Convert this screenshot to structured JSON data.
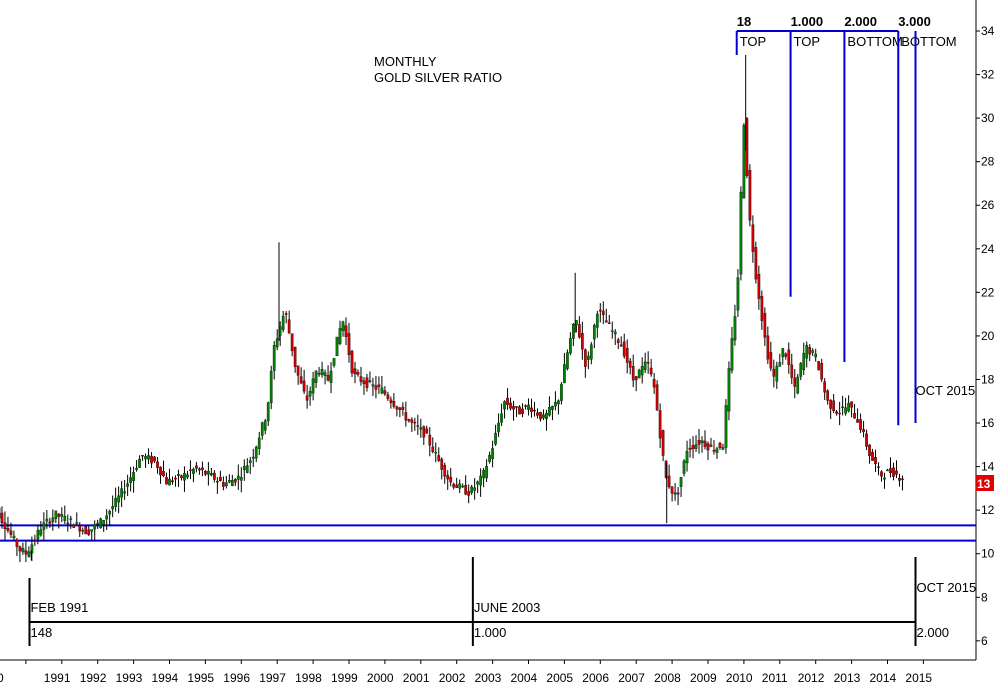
{
  "chart_data": {
    "type": "candlestick",
    "title": "MONTHLY",
    "subtitle": "GOLD SILVER RATIO",
    "ylim": [
      6,
      34
    ],
    "y_ticks": [
      6,
      8,
      10,
      12,
      14,
      16,
      18,
      20,
      22,
      24,
      26,
      28,
      30,
      32,
      34
    ],
    "x_tick_labels": [
      "0",
      "1991",
      "1992",
      "1993",
      "1994",
      "1995",
      "1996",
      "1997",
      "1998",
      "1999",
      "2000",
      "2001",
      "2002",
      "2003",
      "2004",
      "2005",
      "2006",
      "2007",
      "2008",
      "2009",
      "2010",
      "2011",
      "2012",
      "2013",
      "2014",
      "2015"
    ],
    "last_price": "13",
    "colors": {
      "up": "#008000",
      "down": "#cc0000",
      "lines": "#0000cc",
      "cycle": "#000000",
      "tag": "#e00000"
    },
    "horizontal_levels": [
      11.3,
      10.6
    ],
    "cycle_markers": {
      "labels": [
        {
          "id": "feb1991",
          "text": "FEB 1991",
          "sub": "148",
          "year": 1991.1,
          "y": 10
        },
        {
          "id": "june2003",
          "text": "JUNE 2003",
          "sub": "1.000",
          "year": 2003.45,
          "y": 10
        },
        {
          "id": "oct2015",
          "text": "OCT 2015",
          "sub": "2.000",
          "year": 2015.78,
          "y": 10
        }
      ]
    },
    "upper_projection": {
      "labels": [
        {
          "num": "18",
          "word": "TOP",
          "year": 2010.8,
          "bottom": 32.9
        },
        {
          "num": "1.000",
          "word": "TOP",
          "year": 2012.3,
          "bottom": 21.8
        },
        {
          "num": "2.000",
          "word": "BOTTOM",
          "year": 2013.8,
          "bottom": 18.8
        },
        {
          "num": "3.000",
          "word": "BOTTOM",
          "year": 2015.3,
          "bottom": 15.9
        }
      ],
      "right_line": {
        "label": "OCT 2015",
        "year": 2015.78
      }
    },
    "anchors": [
      [
        1990.0,
        12.8
      ],
      [
        1990.4,
        11.6
      ],
      [
        1990.9,
        10.2
      ],
      [
        1991.1,
        10.0
      ],
      [
        1991.5,
        11.2
      ],
      [
        1991.9,
        11.8
      ],
      [
        1992.3,
        11.5
      ],
      [
        1992.8,
        11.0
      ],
      [
        1993.2,
        11.5
      ],
      [
        1993.6,
        12.4
      ],
      [
        1993.9,
        13.2
      ],
      [
        1994.3,
        14.5
      ],
      [
        1994.7,
        14.2
      ],
      [
        1995.0,
        13.3
      ],
      [
        1995.4,
        13.5
      ],
      [
        1995.8,
        13.9
      ],
      [
        1996.2,
        13.6
      ],
      [
        1996.6,
        13.2
      ],
      [
        1997.0,
        13.5
      ],
      [
        1997.4,
        14.5
      ],
      [
        1997.8,
        16.5
      ],
      [
        1998.0,
        19.5
      ],
      [
        1998.3,
        21.2
      ],
      [
        1998.6,
        18.5
      ],
      [
        1998.9,
        17.0
      ],
      [
        1999.2,
        18.5
      ],
      [
        1999.5,
        18.0
      ],
      [
        1999.9,
        20.8
      ],
      [
        2000.2,
        18.2
      ],
      [
        2000.6,
        17.8
      ],
      [
        2001.0,
        17.5
      ],
      [
        2001.4,
        16.8
      ],
      [
        2001.8,
        16.0
      ],
      [
        2002.2,
        15.5
      ],
      [
        2002.6,
        14.2
      ],
      [
        2002.9,
        13.3
      ],
      [
        2003.2,
        13.0
      ],
      [
        2003.45,
        12.8
      ],
      [
        2003.8,
        13.5
      ],
      [
        2004.1,
        15.0
      ],
      [
        2004.4,
        17.0
      ],
      [
        2004.8,
        16.5
      ],
      [
        2005.1,
        16.8
      ],
      [
        2005.5,
        16.2
      ],
      [
        2005.9,
        17.0
      ],
      [
        2006.2,
        19.5
      ],
      [
        2006.4,
        20.8
      ],
      [
        2006.7,
        18.5
      ],
      [
        2007.0,
        21.2
      ],
      [
        2007.3,
        20.5
      ],
      [
        2007.7,
        19.5
      ],
      [
        2008.0,
        18.0
      ],
      [
        2008.4,
        18.8
      ],
      [
        2008.6,
        17.5
      ],
      [
        2008.9,
        13.5
      ],
      [
        2009.2,
        12.5
      ],
      [
        2009.5,
        14.8
      ],
      [
        2009.9,
        15.2
      ],
      [
        2010.2,
        14.8
      ],
      [
        2010.5,
        15.0
      ],
      [
        2010.7,
        19.0
      ],
      [
        2010.9,
        22.0
      ],
      [
        2011.0,
        26.5
      ],
      [
        2011.1,
        30.5
      ],
      [
        2011.2,
        26.0
      ],
      [
        2011.4,
        23.0
      ],
      [
        2011.7,
        19.5
      ],
      [
        2011.9,
        18.0
      ],
      [
        2012.2,
        19.5
      ],
      [
        2012.5,
        17.5
      ],
      [
        2012.8,
        19.5
      ],
      [
        2013.1,
        19.0
      ],
      [
        2013.4,
        17.0
      ],
      [
        2013.7,
        16.5
      ],
      [
        2014.0,
        16.8
      ],
      [
        2014.3,
        16.0
      ],
      [
        2014.6,
        14.5
      ],
      [
        2014.9,
        13.6
      ],
      [
        2015.2,
        13.8
      ],
      [
        2015.45,
        13.5
      ]
    ],
    "spikes": [
      {
        "year": 1998.05,
        "value": 24.3
      },
      {
        "year": 2006.3,
        "value": 22.9
      },
      {
        "year": 2011.05,
        "value": 32.9
      },
      {
        "year": 2008.85,
        "value": 11.4
      },
      {
        "year": 1991.15,
        "value": 9.7
      }
    ]
  }
}
